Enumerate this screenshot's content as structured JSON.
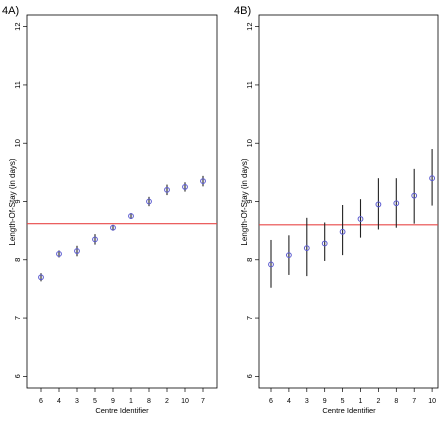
{
  "chart_data": [
    {
      "type": "scatter",
      "panel_label": "4A)",
      "xlabel": "Centre Identifier",
      "ylabel": "Length-Of-Stay (in days)",
      "categories": [
        "6",
        "4",
        "3",
        "5",
        "9",
        "1",
        "8",
        "2",
        "10",
        "7"
      ],
      "values": [
        7.7,
        8.1,
        8.15,
        8.35,
        8.55,
        8.75,
        9.0,
        9.2,
        9.25,
        9.35
      ],
      "ci_low": [
        7.63,
        8.04,
        8.06,
        8.26,
        8.5,
        8.7,
        8.92,
        9.11,
        9.17,
        9.26
      ],
      "ci_high": [
        7.77,
        8.16,
        8.24,
        8.44,
        8.6,
        8.8,
        9.08,
        9.29,
        9.33,
        9.44
      ],
      "reference_line": 8.62,
      "ylim": [
        5.8,
        12.2
      ],
      "yticks": [
        6,
        7,
        8,
        9,
        10,
        11,
        12
      ],
      "colors": {
        "point": "#5a5ad0",
        "reference": "#e84848",
        "whisker": "#222222"
      }
    },
    {
      "type": "scatter",
      "panel_label": "4B)",
      "xlabel": "Centre Identifier",
      "ylabel": "Length-Of-Stay (in days)",
      "categories": [
        "6",
        "4",
        "3",
        "9",
        "5",
        "1",
        "2",
        "8",
        "7",
        "10"
      ],
      "values": [
        7.92,
        8.08,
        8.2,
        8.28,
        8.48,
        8.7,
        8.95,
        8.97,
        9.1,
        9.4
      ],
      "ci_low": [
        7.52,
        7.74,
        7.72,
        7.98,
        8.08,
        8.38,
        8.52,
        8.55,
        8.62,
        8.93
      ],
      "ci_high": [
        8.34,
        8.42,
        8.72,
        8.64,
        8.94,
        9.04,
        9.4,
        9.4,
        9.56,
        9.9
      ],
      "reference_line": 8.6,
      "ylim": [
        5.8,
        12.2
      ],
      "yticks": [
        6,
        7,
        8,
        9,
        10,
        11,
        12
      ],
      "colors": {
        "point": "#5a5ad0",
        "reference": "#e84848",
        "whisker": "#222222"
      }
    }
  ]
}
